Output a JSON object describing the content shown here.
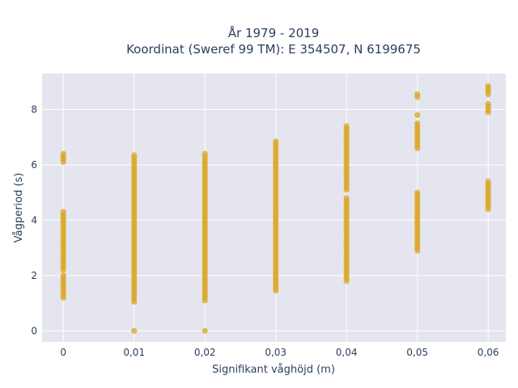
{
  "chart_data": {
    "type": "scatter",
    "title_line1": "År 1979 - 2019",
    "title_line2": "Koordinat (Sweref 99 TM): E 354507, N 6199675",
    "xlabel": "Signifikant våghöjd (m)",
    "ylabel": "Vågperiod (s)",
    "xlim": [
      -0.003,
      0.0625
    ],
    "ylim": [
      -0.4,
      9.3
    ],
    "grid": true,
    "marker_color": "#DAA520",
    "background_color": "#E5E5EF",
    "x_ticks": [
      {
        "value": 0,
        "label": "0"
      },
      {
        "value": 0.01,
        "label": "0,01"
      },
      {
        "value": 0.02,
        "label": "0,02"
      },
      {
        "value": 0.03,
        "label": "0,03"
      },
      {
        "value": 0.04,
        "label": "0,04"
      },
      {
        "value": 0.05,
        "label": "0,05"
      },
      {
        "value": 0.06,
        "label": "0,06"
      }
    ],
    "y_ticks": [
      {
        "value": 0,
        "label": "0"
      },
      {
        "value": 2,
        "label": "2"
      },
      {
        "value": 4,
        "label": "4"
      },
      {
        "value": 6,
        "label": "6"
      },
      {
        "value": 8,
        "label": "8"
      }
    ],
    "series": [
      {
        "x": 0,
        "ranges": [
          [
            1.2,
            2.0
          ],
          [
            2.2,
            4.3
          ],
          [
            6.1,
            6.4
          ]
        ]
      },
      {
        "x": 0.01,
        "ranges": [
          [
            0,
            0
          ],
          [
            1.05,
            6.4
          ]
        ]
      },
      {
        "x": 0.02,
        "ranges": [
          [
            0,
            0
          ],
          [
            1.1,
            6.4
          ]
        ]
      },
      {
        "x": 0.03,
        "ranges": [
          [
            1.45,
            6.9
          ]
        ]
      },
      {
        "x": 0.04,
        "ranges": [
          [
            1.8,
            4.8
          ],
          [
            5.1,
            7.4
          ]
        ]
      },
      {
        "x": 0.05,
        "ranges": [
          [
            2.9,
            5.0
          ],
          [
            6.6,
            7.5
          ],
          [
            7.8,
            7.8
          ],
          [
            8.45,
            8.55
          ]
        ]
      },
      {
        "x": 0.06,
        "ranges": [
          [
            4.4,
            5.4
          ],
          [
            7.9,
            8.2
          ],
          [
            8.55,
            8.85
          ]
        ]
      }
    ]
  }
}
